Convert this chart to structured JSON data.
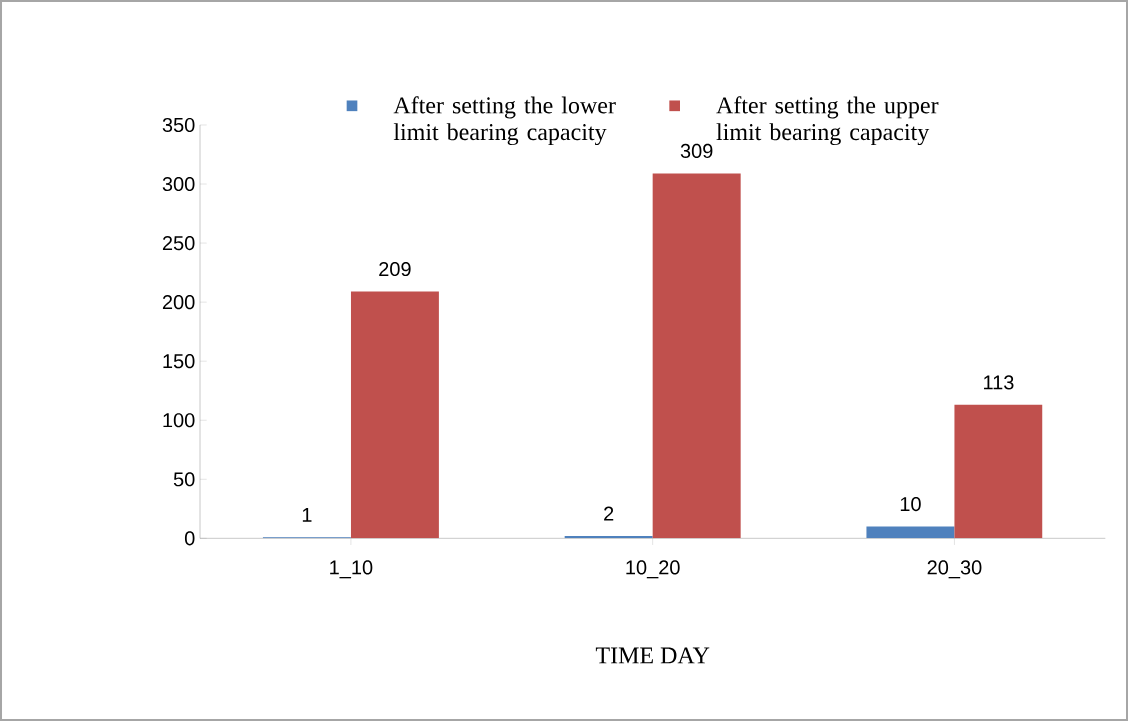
{
  "chart_data": {
    "type": "bar",
    "categories": [
      "1_10",
      "10_20",
      "20_30"
    ],
    "series": [
      {
        "name": "After setting the lower limit bearing capacity",
        "color": "#4f81bd",
        "values": [
          1,
          2,
          10
        ]
      },
      {
        "name": "After setting the upper limit bearing capacity",
        "color": "#c0504d",
        "values": [
          209,
          309,
          113
        ]
      }
    ],
    "xlabel": "TIME DAY",
    "ylim": [
      0,
      350
    ],
    "yticks": [
      0,
      50,
      100,
      150,
      200,
      250,
      300,
      350
    ],
    "data_labels": true,
    "legend": "top"
  }
}
